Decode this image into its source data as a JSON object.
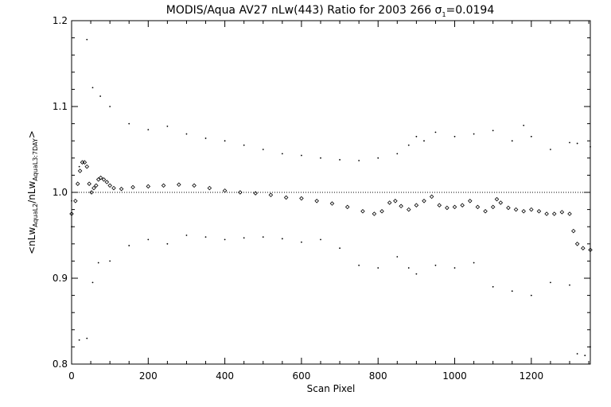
{
  "chart_data": {
    "type": "scatter",
    "title": "MODIS/Aqua AV27 nLw(443) Ratio for 2003 266 σ",
    "title_sub": "1",
    "title_suffix": "=0.0194",
    "xlabel": "Scan Pixel",
    "ylabel": {
      "open": "<nLw",
      "sub1": "AquaL2",
      "mid": "/nLw",
      "sub2": "AquaL3:7DAY",
      "close": ">"
    },
    "xlim": [
      0,
      1354
    ],
    "ylim": [
      0.8,
      1.2
    ],
    "xticks": [
      0,
      200,
      400,
      600,
      800,
      1000,
      1200
    ],
    "xtick_labels": [
      "0",
      "200",
      "400",
      "600",
      "800",
      "1000",
      "1200"
    ],
    "yticks": [
      0.8,
      0.9,
      1.0,
      1.1,
      1.2
    ],
    "ytick_labels": [
      "0.8",
      "0.9",
      "1.0",
      "1.1",
      "1.2"
    ],
    "reference_line": 1.0,
    "grid": false,
    "legend": "none",
    "series": [
      {
        "role": "mean ratio",
        "marker": "diamond",
        "points": [
          [
            0,
            0.975
          ],
          [
            10,
            0.99
          ],
          [
            16,
            1.01
          ],
          [
            22,
            1.025
          ],
          [
            28,
            1.035
          ],
          [
            34,
            1.035
          ],
          [
            40,
            1.03
          ],
          [
            46,
            1.01
          ],
          [
            52,
            1.0
          ],
          [
            58,
            1.005
          ],
          [
            64,
            1.008
          ],
          [
            70,
            1.015
          ],
          [
            76,
            1.017
          ],
          [
            84,
            1.015
          ],
          [
            92,
            1.012
          ],
          [
            100,
            1.008
          ],
          [
            110,
            1.005
          ],
          [
            130,
            1.004
          ],
          [
            160,
            1.006
          ],
          [
            200,
            1.007
          ],
          [
            240,
            1.008
          ],
          [
            280,
            1.009
          ],
          [
            320,
            1.008
          ],
          [
            360,
            1.005
          ],
          [
            400,
            1.002
          ],
          [
            440,
            1.0
          ],
          [
            480,
            0.999
          ],
          [
            520,
            0.997
          ],
          [
            560,
            0.994
          ],
          [
            600,
            0.993
          ],
          [
            640,
            0.99
          ],
          [
            680,
            0.987
          ],
          [
            720,
            0.983
          ],
          [
            760,
            0.978
          ],
          [
            790,
            0.975
          ],
          [
            810,
            0.978
          ],
          [
            830,
            0.988
          ],
          [
            845,
            0.99
          ],
          [
            860,
            0.984
          ],
          [
            880,
            0.98
          ],
          [
            900,
            0.985
          ],
          [
            920,
            0.99
          ],
          [
            940,
            0.995
          ],
          [
            960,
            0.985
          ],
          [
            980,
            0.982
          ],
          [
            1000,
            0.983
          ],
          [
            1020,
            0.985
          ],
          [
            1040,
            0.99
          ],
          [
            1060,
            0.983
          ],
          [
            1080,
            0.978
          ],
          [
            1100,
            0.983
          ],
          [
            1110,
            0.992
          ],
          [
            1120,
            0.988
          ],
          [
            1140,
            0.982
          ],
          [
            1160,
            0.98
          ],
          [
            1180,
            0.978
          ],
          [
            1200,
            0.98
          ],
          [
            1220,
            0.978
          ],
          [
            1240,
            0.975
          ],
          [
            1260,
            0.975
          ],
          [
            1280,
            0.977
          ],
          [
            1300,
            0.975
          ],
          [
            1310,
            0.955
          ],
          [
            1320,
            0.94
          ],
          [
            1335,
            0.935
          ],
          [
            1354,
            0.933
          ]
        ]
      },
      {
        "role": "upper envelope",
        "marker": "dot",
        "points": [
          [
            0,
            0.99
          ],
          [
            20,
            1.03
          ],
          [
            40,
            1.178
          ],
          [
            55,
            1.122
          ],
          [
            75,
            1.112
          ],
          [
            100,
            1.1
          ],
          [
            150,
            1.08
          ],
          [
            200,
            1.073
          ],
          [
            250,
            1.077
          ],
          [
            300,
            1.068
          ],
          [
            350,
            1.063
          ],
          [
            400,
            1.06
          ],
          [
            450,
            1.055
          ],
          [
            500,
            1.05
          ],
          [
            550,
            1.045
          ],
          [
            600,
            1.043
          ],
          [
            650,
            1.04
          ],
          [
            700,
            1.038
          ],
          [
            750,
            1.037
          ],
          [
            800,
            1.04
          ],
          [
            850,
            1.045
          ],
          [
            880,
            1.055
          ],
          [
            900,
            1.065
          ],
          [
            920,
            1.06
          ],
          [
            950,
            1.07
          ],
          [
            1000,
            1.065
          ],
          [
            1050,
            1.068
          ],
          [
            1100,
            1.072
          ],
          [
            1150,
            1.06
          ],
          [
            1180,
            1.078
          ],
          [
            1200,
            1.065
          ],
          [
            1250,
            1.05
          ],
          [
            1300,
            1.058
          ],
          [
            1320,
            1.057
          ],
          [
            1354,
            1.053
          ]
        ]
      },
      {
        "role": "lower envelope",
        "marker": "dot",
        "points": [
          [
            0,
            0.96
          ],
          [
            20,
            0.828
          ],
          [
            40,
            0.83
          ],
          [
            55,
            0.895
          ],
          [
            70,
            0.918
          ],
          [
            100,
            0.92
          ],
          [
            150,
            0.938
          ],
          [
            200,
            0.945
          ],
          [
            250,
            0.94
          ],
          [
            300,
            0.95
          ],
          [
            350,
            0.948
          ],
          [
            400,
            0.945
          ],
          [
            450,
            0.947
          ],
          [
            500,
            0.948
          ],
          [
            550,
            0.946
          ],
          [
            600,
            0.942
          ],
          [
            650,
            0.945
          ],
          [
            700,
            0.935
          ],
          [
            750,
            0.915
          ],
          [
            800,
            0.912
          ],
          [
            850,
            0.925
          ],
          [
            880,
            0.912
          ],
          [
            900,
            0.905
          ],
          [
            950,
            0.915
          ],
          [
            1000,
            0.912
          ],
          [
            1050,
            0.918
          ],
          [
            1100,
            0.89
          ],
          [
            1150,
            0.885
          ],
          [
            1200,
            0.88
          ],
          [
            1250,
            0.895
          ],
          [
            1300,
            0.892
          ],
          [
            1320,
            0.812
          ],
          [
            1340,
            0.81
          ],
          [
            1354,
            0.82
          ]
        ]
      }
    ]
  }
}
